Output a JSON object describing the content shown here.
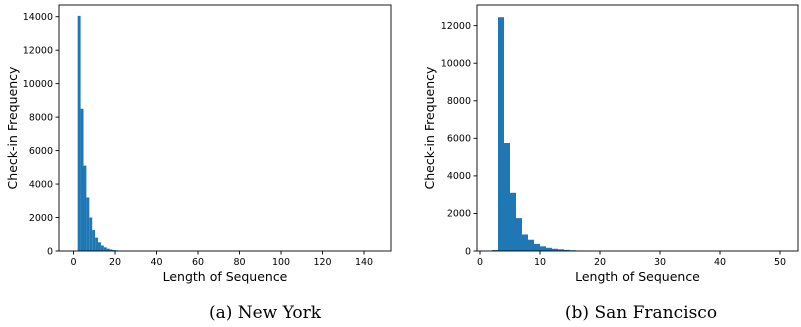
{
  "chart_data": [
    {
      "type": "bar",
      "caption": "(a)  New York",
      "xlabel": "Length of Sequence",
      "ylabel": "Check-in Frequency",
      "xlim": [
        -7,
        153
      ],
      "ylim": [
        0,
        14700
      ],
      "xticks": [
        0,
        20,
        40,
        60,
        80,
        100,
        120,
        140
      ],
      "yticks": [
        0,
        2000,
        4000,
        6000,
        8000,
        10000,
        12000,
        14000
      ],
      "bin_width": 1.4,
      "bins": [
        {
          "x": 2.0,
          "value": 14050
        },
        {
          "x": 3.4,
          "value": 8500
        },
        {
          "x": 4.8,
          "value": 5100
        },
        {
          "x": 6.2,
          "value": 3200
        },
        {
          "x": 7.6,
          "value": 2000
        },
        {
          "x": 9.0,
          "value": 1250
        },
        {
          "x": 10.4,
          "value": 800
        },
        {
          "x": 11.8,
          "value": 520
        },
        {
          "x": 13.2,
          "value": 330
        },
        {
          "x": 14.6,
          "value": 220
        },
        {
          "x": 16.0,
          "value": 140
        },
        {
          "x": 17.4,
          "value": 90
        },
        {
          "x": 18.8,
          "value": 60
        },
        {
          "x": 20.2,
          "value": 40
        },
        {
          "x": 21.6,
          "value": 25
        },
        {
          "x": 23.0,
          "value": 15
        }
      ]
    },
    {
      "type": "bar",
      "caption": "(b)  San Francisco",
      "xlabel": "Length of Sequence",
      "ylabel": "Check-in Frequency",
      "xlim": [
        -0.5,
        53
      ],
      "ylim": [
        0,
        13100
      ],
      "xticks": [
        0,
        10,
        20,
        30,
        40,
        50
      ],
      "yticks": [
        0,
        2000,
        4000,
        6000,
        8000,
        10000,
        12000
      ],
      "bin_width": 1,
      "bins": [
        {
          "x": 2,
          "value": 50
        },
        {
          "x": 3,
          "value": 12450
        },
        {
          "x": 4,
          "value": 5750
        },
        {
          "x": 5,
          "value": 3100
        },
        {
          "x": 6,
          "value": 1750
        },
        {
          "x": 7,
          "value": 880
        },
        {
          "x": 8,
          "value": 600
        },
        {
          "x": 9,
          "value": 380
        },
        {
          "x": 10,
          "value": 250
        },
        {
          "x": 11,
          "value": 170
        },
        {
          "x": 12,
          "value": 120
        },
        {
          "x": 13,
          "value": 90
        },
        {
          "x": 14,
          "value": 60
        },
        {
          "x": 15,
          "value": 40
        },
        {
          "x": 16,
          "value": 25
        },
        {
          "x": 17,
          "value": 15
        },
        {
          "x": 18,
          "value": 10
        }
      ]
    }
  ],
  "colors": {
    "bar": "#1f77b4",
    "axis": "#000000"
  }
}
